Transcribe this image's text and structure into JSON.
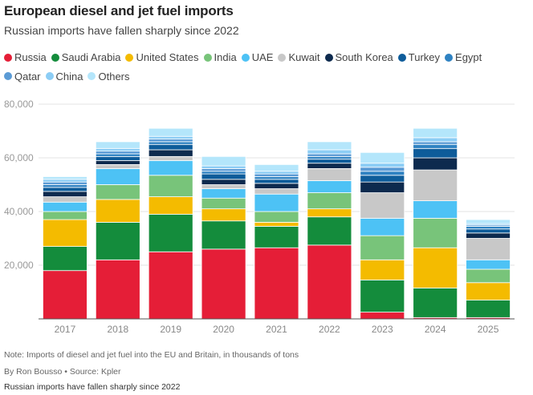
{
  "chart_data": {
    "type": "bar",
    "stacked": true,
    "title": "European diesel and jet fuel imports",
    "subtitle": "Russian imports have fallen sharply since 2022",
    "categories": [
      "2017",
      "2018",
      "2019",
      "2020",
      "2021",
      "2022",
      "2023",
      "2024",
      "2025"
    ],
    "ylim": [
      0,
      80000
    ],
    "yticks": [
      0,
      20000,
      40000,
      60000,
      80000
    ],
    "ytick_labels": [
      "",
      "20,000",
      "40,000",
      "60,000",
      "80,000"
    ],
    "grid": true,
    "legend_position": "top",
    "series": [
      {
        "name": "Russia",
        "color": "#e51e37",
        "values": [
          18000,
          22000,
          25000,
          26000,
          26500,
          27500,
          2500,
          500,
          500
        ]
      },
      {
        "name": "Saudi Arabia",
        "color": "#148c3c",
        "values": [
          9000,
          14000,
          14000,
          10500,
          8000,
          10500,
          12000,
          11000,
          6500
        ]
      },
      {
        "name": "United States",
        "color": "#f4bb00",
        "values": [
          10000,
          8500,
          6500,
          4500,
          1500,
          3000,
          7500,
          15000,
          6500
        ]
      },
      {
        "name": "India",
        "color": "#78c47a",
        "values": [
          3000,
          5500,
          8000,
          4000,
          4000,
          6000,
          9000,
          11000,
          5000
        ]
      },
      {
        "name": "UAE",
        "color": "#4dc2f5",
        "values": [
          3500,
          6000,
          5500,
          3500,
          6500,
          4500,
          6500,
          6500,
          3500
        ]
      },
      {
        "name": "Kuwait",
        "color": "#c8c8c8",
        "values": [
          2000,
          1500,
          1500,
          1500,
          2000,
          4500,
          9500,
          11500,
          8000
        ]
      },
      {
        "name": "South Korea",
        "color": "#0d2a4e",
        "values": [
          2000,
          1500,
          2500,
          2000,
          2000,
          2000,
          4000,
          4500,
          2000
        ]
      },
      {
        "name": "Turkey",
        "color": "#0e5c9a",
        "values": [
          1500,
          1500,
          2000,
          2000,
          1500,
          1500,
          2500,
          3500,
          1500
        ]
      },
      {
        "name": "Egypt",
        "color": "#2f82c2",
        "values": [
          1000,
          1000,
          1000,
          1000,
          1000,
          1000,
          1500,
          1500,
          1000
        ]
      },
      {
        "name": "Qatar",
        "color": "#5b9bd5",
        "values": [
          1000,
          1000,
          1000,
          1000,
          1000,
          1000,
          1500,
          1000,
          500
        ]
      },
      {
        "name": "China",
        "color": "#8ccdf5",
        "values": [
          1000,
          1000,
          1000,
          1000,
          1000,
          1500,
          1500,
          1500,
          500
        ]
      },
      {
        "name": "Others",
        "color": "#b4e6fb",
        "values": [
          1000,
          2500,
          3000,
          3500,
          2500,
          3000,
          4000,
          3500,
          1500
        ]
      }
    ],
    "note": "Note: Imports of diesel and jet fuel into the EU and Britain, in thousands of tons",
    "byline": "By Ron Bousso • Source: Kpler",
    "caption": "Russian imports have fallen sharply since 2022"
  }
}
